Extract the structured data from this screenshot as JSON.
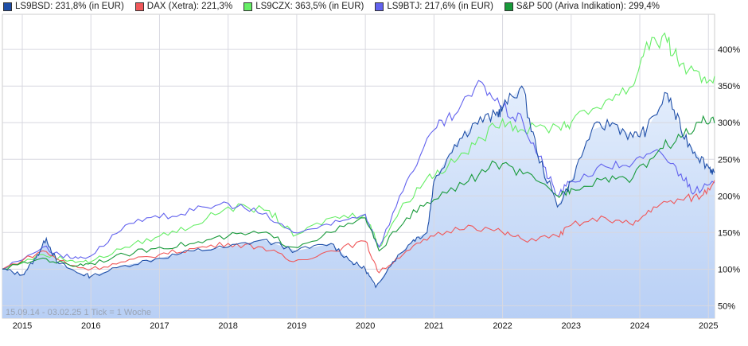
{
  "chart_data": {
    "type": "line",
    "caption": "15.09.14 - 03.02.25   1 Tick = 1 Woche",
    "xlim": [
      2014.71,
      2025.09
    ],
    "ylim": [
      33,
      448
    ],
    "grid": true,
    "legend_position": "top",
    "x_ticks": [
      2015,
      2016,
      2017,
      2018,
      2019,
      2020,
      2021,
      2022,
      2023,
      2024,
      2025
    ],
    "x_tick_labels": [
      "2015",
      "2016",
      "2017",
      "2018",
      "2019",
      "2020",
      "2021",
      "2022",
      "2023",
      "2024",
      "2025"
    ],
    "y_ticks": [
      50,
      100,
      150,
      200,
      250,
      300,
      350,
      400
    ],
    "y_tick_labels": [
      "50%",
      "100%",
      "150%",
      "200%",
      "250%",
      "300%",
      "350%",
      "400%"
    ],
    "series": [
      {
        "name": "LS9BSD",
        "legend": "LS9BSD: 231,8% (in EUR)",
        "color": "#1f4fa8",
        "filled": true,
        "x": [
          2014.71,
          2015.0,
          2015.2,
          2015.35,
          2015.5,
          2015.8,
          2016.0,
          2016.5,
          2017.0,
          2017.5,
          2018.0,
          2018.5,
          2019.0,
          2019.5,
          2019.8,
          2020.0,
          2020.15,
          2020.4,
          2020.7,
          2020.9,
          2021.0,
          2021.3,
          2021.6,
          2021.9,
          2022.0,
          2022.28,
          2022.5,
          2022.8,
          2023.0,
          2023.3,
          2023.6,
          2023.9,
          2024.1,
          2024.4,
          2024.6,
          2024.8,
          2025.0,
          2025.09
        ],
        "y": [
          100,
          92,
          115,
          142,
          110,
          95,
          90,
          105,
          115,
          125,
          130,
          140,
          125,
          135,
          110,
          100,
          75,
          110,
          140,
          150,
          220,
          270,
          300,
          310,
          320,
          350,
          260,
          185,
          220,
          290,
          300,
          280,
          290,
          340,
          290,
          260,
          240,
          231.8
        ]
      },
      {
        "name": "DAX",
        "legend": "DAX (Xetra): 221,3%",
        "color": "#f0585a",
        "filled": false,
        "x": [
          2014.71,
          2015.3,
          2015.7,
          2016.0,
          2016.5,
          2017.0,
          2017.5,
          2018.0,
          2018.5,
          2018.95,
          2019.5,
          2020.0,
          2020.2,
          2020.6,
          2021.0,
          2021.5,
          2022.0,
          2022.3,
          2022.8,
          2023.0,
          2023.5,
          2023.9,
          2024.2,
          2024.6,
          2024.9,
          2025.09
        ],
        "y": [
          100,
          125,
          105,
          100,
          110,
          120,
          128,
          135,
          130,
          110,
          125,
          138,
          95,
          125,
          145,
          160,
          150,
          140,
          145,
          160,
          170,
          160,
          185,
          195,
          200,
          221.3
        ]
      },
      {
        "name": "LS9CZX",
        "legend": "LS9CZX: 363,5% (in EUR)",
        "color": "#66ee66",
        "filled": false,
        "x": [
          2014.71,
          2015.3,
          2015.7,
          2016.0,
          2016.5,
          2017.0,
          2017.5,
          2018.0,
          2018.6,
          2018.95,
          2019.5,
          2020.0,
          2020.2,
          2020.5,
          2020.9,
          2021.2,
          2021.6,
          2022.0,
          2022.3,
          2022.8,
          2023.0,
          2023.5,
          2023.9,
          2024.1,
          2024.4,
          2024.6,
          2024.9,
          2025.09
        ],
        "y": [
          100,
          120,
          112,
          110,
          130,
          145,
          160,
          185,
          180,
          145,
          170,
          175,
          130,
          180,
          225,
          240,
          270,
          305,
          290,
          295,
          300,
          330,
          350,
          410,
          410,
          380,
          355,
          363.5
        ]
      },
      {
        "name": "LS9BTJ",
        "legend": "LS9BTJ: 217,6% (in EUR)",
        "color": "#6262ee",
        "filled": false,
        "x": [
          2014.71,
          2015.3,
          2015.7,
          2016.0,
          2016.5,
          2017.0,
          2017.5,
          2018.0,
          2018.5,
          2018.95,
          2019.5,
          2020.0,
          2020.2,
          2020.6,
          2021.0,
          2021.3,
          2021.7,
          2022.0,
          2022.3,
          2022.6,
          2022.8,
          2023.0,
          2023.5,
          2023.9,
          2024.3,
          2024.6,
          2024.8,
          2025.09
        ],
        "y": [
          100,
          130,
          115,
          118,
          160,
          170,
          180,
          190,
          175,
          150,
          160,
          175,
          130,
          220,
          290,
          310,
          355,
          320,
          300,
          240,
          200,
          220,
          240,
          245,
          260,
          230,
          205,
          217.6
        ]
      },
      {
        "name": "S&P 500",
        "legend": "S&P 500 (Ariva Indikation): 299,4%",
        "color": "#189a3a",
        "filled": false,
        "x": [
          2014.71,
          2015.3,
          2015.7,
          2016.0,
          2016.5,
          2017.0,
          2017.5,
          2018.0,
          2018.5,
          2018.95,
          2019.5,
          2020.0,
          2020.2,
          2020.6,
          2021.0,
          2021.5,
          2021.9,
          2022.3,
          2022.8,
          2023.0,
          2023.5,
          2023.9,
          2024.3,
          2024.6,
          2024.9,
          2025.09
        ],
        "y": [
          100,
          115,
          105,
          108,
          120,
          130,
          135,
          145,
          150,
          130,
          150,
          170,
          125,
          170,
          195,
          220,
          245,
          230,
          200,
          210,
          225,
          225,
          265,
          280,
          300,
          299.4
        ]
      }
    ]
  }
}
